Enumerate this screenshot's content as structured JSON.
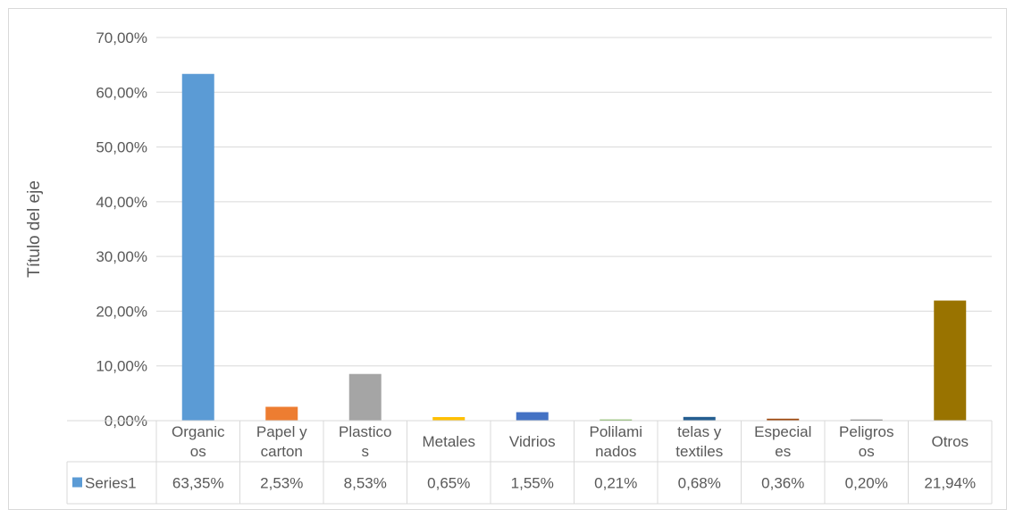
{
  "chart_data": {
    "type": "bar",
    "title": "",
    "xlabel": "",
    "ylabel": "Título del eje",
    "ylim": [
      0,
      70
    ],
    "y_ticks": [
      "0,00%",
      "10,00%",
      "20,00%",
      "30,00%",
      "40,00%",
      "50,00%",
      "60,00%",
      "70,00%"
    ],
    "grid": true,
    "legend": "data-table",
    "categories": [
      [
        "Organic",
        "os"
      ],
      [
        "Papel y",
        "carton"
      ],
      [
        "Plastico",
        "s"
      ],
      [
        "Metales"
      ],
      [
        "Vidrios"
      ],
      [
        "Polilami",
        "nados"
      ],
      [
        "telas y",
        "textiles"
      ],
      [
        "Especial",
        "es"
      ],
      [
        "Peligros",
        "os"
      ],
      [
        "Otros"
      ]
    ],
    "series": [
      {
        "name": "Series1",
        "values": [
          63.35,
          2.53,
          8.53,
          0.65,
          1.55,
          0.21,
          0.68,
          0.36,
          0.2,
          21.94
        ],
        "labels": [
          "63,35%",
          "2,53%",
          "8,53%",
          "0,65%",
          "1,55%",
          "0,21%",
          "0,68%",
          "0,36%",
          "0,20%",
          "21,94%"
        ],
        "legend_color": "#5b9bd5",
        "colors": [
          "#5b9bd5",
          "#ed7d31",
          "#a5a5a5",
          "#ffc000",
          "#4472c4",
          "#70ad47",
          "#255e91",
          "#9e480e",
          "#636363",
          "#997300"
        ]
      }
    ]
  }
}
